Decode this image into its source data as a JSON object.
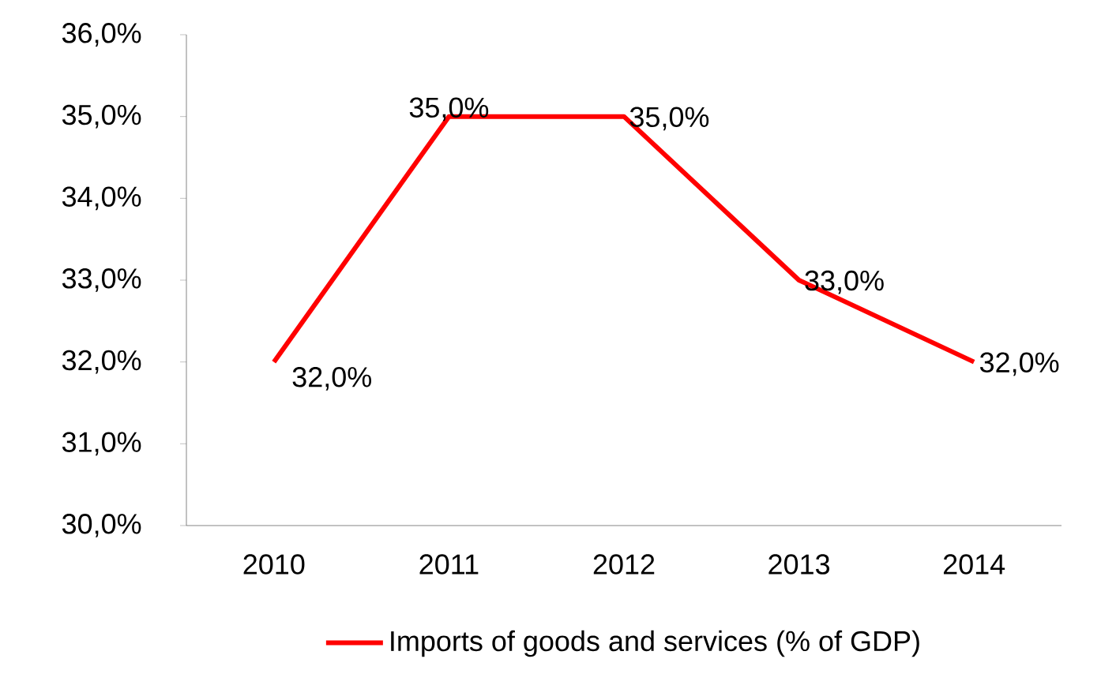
{
  "chart_data": {
    "type": "line",
    "categories": [
      "2010",
      "2011",
      "2012",
      "2013",
      "2014"
    ],
    "series": [
      {
        "name": "Imports of goods and services (% of GDP)",
        "color": "#ff0000",
        "values": [
          32,
          35,
          35,
          33,
          32
        ],
        "value_labels": [
          "32,0%",
          "35,0%",
          "35,0%",
          "33,0%",
          "32,0%"
        ]
      }
    ],
    "ylim": [
      30,
      36
    ],
    "yticks": [
      {
        "value": 30,
        "label": "30,0%"
      },
      {
        "value": 31,
        "label": "31,0%"
      },
      {
        "value": 32,
        "label": "32,0%"
      },
      {
        "value": 33,
        "label": "33,0%"
      },
      {
        "value": 34,
        "label": "34,0%"
      },
      {
        "value": 35,
        "label": "35,0%"
      },
      {
        "value": 36,
        "label": "36,0%"
      }
    ],
    "grid": false,
    "legend": "bottom",
    "marker": "none",
    "line_style": "solid"
  }
}
